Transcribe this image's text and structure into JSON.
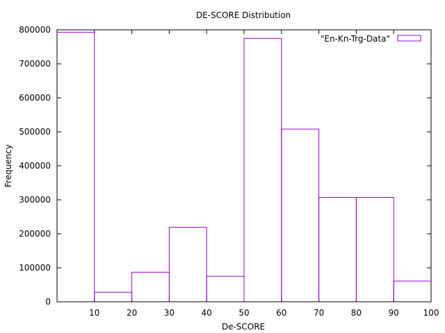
{
  "chart_data": {
    "type": "bar",
    "title": "DE-SCORE Distribution",
    "xlabel": "De-SCORE",
    "ylabel": "Frequency",
    "xlim": [
      0,
      100
    ],
    "ylim": [
      0,
      800000
    ],
    "x_ticks": [
      "10",
      "20",
      "30",
      "40",
      "50",
      "60",
      "70",
      "80",
      "90",
      "100"
    ],
    "y_ticks": [
      "0",
      "100000",
      "200000",
      "300000",
      "400000",
      "500000",
      "600000",
      "700000",
      "800000"
    ],
    "bin_width": 10,
    "categories": [
      "0",
      "10",
      "20",
      "30",
      "40",
      "50",
      "60",
      "70",
      "80",
      "90"
    ],
    "series": [
      {
        "name": "\"En-Kn-Trg-Data\"",
        "color": "#9400d3",
        "values": [
          793000,
          28000,
          87000,
          219000,
          75000,
          775000,
          508000,
          307000,
          307000,
          61000
        ]
      }
    ],
    "legend_position": "top-right",
    "grid": false
  }
}
